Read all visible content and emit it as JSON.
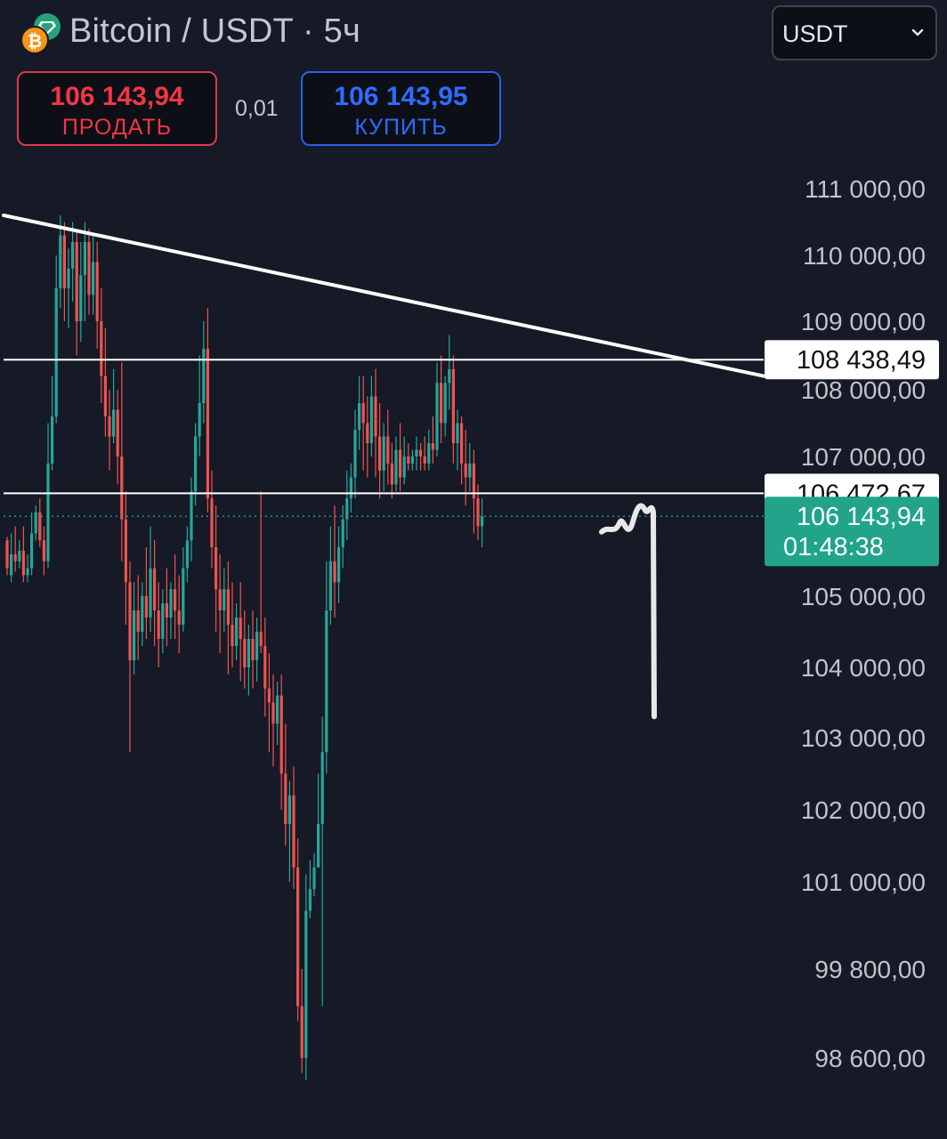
{
  "header": {
    "title": "Bitcoin / USDT · 5ч",
    "currency_select": "USDT",
    "icons": [
      "bitcoin-icon",
      "tether-diamond-icon",
      "chevron-down-icon"
    ]
  },
  "trade": {
    "sell_price": "106 143,94",
    "sell_label": "ПРОДАТЬ",
    "spread": "0,01",
    "buy_price": "106 143,95",
    "buy_label": "КУПИТЬ"
  },
  "colors": {
    "background": "#151a26",
    "up": "#26a69a",
    "down": "#ef5350",
    "sell": "#f23645",
    "buy": "#2f6bff",
    "current_price_tag": "#21a48a"
  },
  "chart_data": {
    "type": "candlestick",
    "y_axis_ticks": [
      111000,
      110000,
      109000,
      108000,
      107000,
      105000,
      104000,
      103000,
      102000,
      101000,
      99800,
      98600
    ],
    "y_axis_labels": [
      "111 000,00",
      "110 000,00",
      "109 000,00",
      "108 000,00",
      "107 000,00",
      "105 000,00",
      "104 000,00",
      "103 000,00",
      "102 000,00",
      "101 000,00",
      "99 800,00",
      "98 600,00"
    ],
    "horizontal_levels": [
      {
        "value": 108438.49,
        "label": "108 438,49"
      },
      {
        "value": 106472.67,
        "label": "106 472,67"
      }
    ],
    "current_price": {
      "value": 106143.94,
      "label": "106 143,94",
      "countdown": "01:48:38"
    },
    "trendline": {
      "from_price": 110600,
      "to_price": 108200
    },
    "drawing": {
      "kind": "hand-drawn projection",
      "from_price": 106200,
      "to_price": 103300
    },
    "candles": [
      [
        105800,
        105850,
        105400,
        105300
      ],
      [
        105300,
        105900,
        105600,
        105200
      ],
      [
        105600,
        106000,
        105500,
        105350
      ],
      [
        105500,
        105800,
        105650,
        105400
      ],
      [
        105650,
        106000,
        105300,
        105200
      ],
      [
        105300,
        105600,
        105400,
        105200
      ],
      [
        105400,
        106200,
        105900,
        105300
      ],
      [
        105900,
        106300,
        106200,
        105800
      ],
      [
        106200,
        106400,
        105800,
        105700
      ],
      [
        105800,
        106000,
        105500,
        105300
      ],
      [
        105500,
        107500,
        106900,
        105400
      ],
      [
        106900,
        108200,
        107600,
        106800
      ],
      [
        107600,
        110000,
        109500,
        107500
      ],
      [
        109500,
        110600,
        110300,
        109200
      ],
      [
        110300,
        110500,
        109500,
        109000
      ],
      [
        109500,
        110100,
        109800,
        108900
      ],
      [
        109800,
        110500,
        110200,
        109300
      ],
      [
        110200,
        110400,
        109000,
        108500
      ],
      [
        109000,
        110200,
        109700,
        108700
      ],
      [
        109700,
        110500,
        110200,
        109000
      ],
      [
        110200,
        110400,
        109400,
        109100
      ],
      [
        109400,
        110300,
        109900,
        109100
      ],
      [
        109900,
        110200,
        109000,
        108600
      ],
      [
        109000,
        109500,
        108200,
        107800
      ],
      [
        108200,
        108900,
        107600,
        107300
      ],
      [
        107600,
        108000,
        107300,
        106800
      ],
      [
        107300,
        108300,
        107700,
        107200
      ],
      [
        107700,
        108000,
        107000,
        106600
      ],
      [
        107000,
        108400,
        106100,
        105500
      ],
      [
        106100,
        106500,
        105200,
        104600
      ],
      [
        105200,
        105500,
        104100,
        102800
      ],
      [
        104100,
        105200,
        104800,
        103900
      ],
      [
        104800,
        105300,
        104500,
        104100
      ],
      [
        104500,
        105200,
        105000,
        104300
      ],
      [
        105000,
        105700,
        104700,
        104400
      ],
      [
        104700,
        106000,
        105400,
        104500
      ],
      [
        105400,
        105800,
        104800,
        104300
      ],
      [
        104800,
        105200,
        104400,
        104000
      ],
      [
        104400,
        105100,
        104900,
        104200
      ],
      [
        104900,
        105400,
        104700,
        104300
      ],
      [
        104700,
        105200,
        105100,
        104400
      ],
      [
        105100,
        105600,
        104800,
        104400
      ],
      [
        104800,
        105300,
        104600,
        104200
      ],
      [
        104600,
        105700,
        105400,
        104500
      ],
      [
        105400,
        106000,
        105800,
        105200
      ],
      [
        105800,
        106700,
        106500,
        105500
      ],
      [
        106500,
        107500,
        107300,
        106300
      ],
      [
        107300,
        108500,
        107800,
        107000
      ],
      [
        107800,
        109000,
        108600,
        107500
      ],
      [
        108600,
        109200,
        106400,
        106200
      ],
      [
        106400,
        106800,
        105700,
        105400
      ],
      [
        105700,
        106300,
        105100,
        104500
      ],
      [
        105100,
        105600,
        104800,
        104200
      ],
      [
        104800,
        105400,
        105100,
        104500
      ],
      [
        105100,
        105500,
        104600,
        103900
      ],
      [
        104600,
        105200,
        104300,
        104000
      ],
      [
        104300,
        104900,
        104700,
        104100
      ],
      [
        104700,
        105200,
        104400,
        103800
      ],
      [
        104400,
        104800,
        104000,
        103700
      ],
      [
        104000,
        104600,
        104400,
        103600
      ],
      [
        104400,
        104800,
        104100,
        103700
      ],
      [
        104100,
        104700,
        104500,
        103800
      ],
      [
        104500,
        106500,
        104300,
        104200
      ],
      [
        104300,
        104700,
        103700,
        103300
      ],
      [
        103700,
        104200,
        103500,
        102800
      ],
      [
        103500,
        103900,
        103200,
        102600
      ],
      [
        103200,
        103800,
        103600,
        102900
      ],
      [
        103600,
        103900,
        102500,
        102000
      ],
      [
        102500,
        103200,
        101800,
        101500
      ],
      [
        101800,
        102400,
        102200,
        101000
      ],
      [
        102200,
        102600,
        101200,
        100900
      ],
      [
        101200,
        101600,
        99300,
        99100
      ],
      [
        99300,
        99800,
        98600,
        98400
      ],
      [
        98600,
        101100,
        100600,
        98300
      ],
      [
        100600,
        101300,
        100900,
        100500
      ],
      [
        100900,
        101400,
        101200,
        100800
      ],
      [
        101200,
        102500,
        101800,
        101200
      ],
      [
        101800,
        103300,
        102800,
        99300
      ],
      [
        102800,
        105500,
        104800,
        102500
      ],
      [
        104800,
        106000,
        105500,
        104600
      ],
      [
        105500,
        106300,
        105200,
        104700
      ],
      [
        105200,
        106000,
        105700,
        104900
      ],
      [
        105700,
        106300,
        106100,
        105400
      ],
      [
        106100,
        106800,
        106400,
        105800
      ],
      [
        106400,
        106900,
        106700,
        106200
      ],
      [
        106700,
        107700,
        107400,
        106400
      ],
      [
        107400,
        108200,
        107800,
        107100
      ],
      [
        107800,
        108200,
        107500,
        106800
      ],
      [
        107500,
        107900,
        107200,
        106700
      ],
      [
        107200,
        108200,
        107900,
        107000
      ],
      [
        107900,
        108300,
        107300,
        106700
      ],
      [
        107300,
        107800,
        106800,
        106400
      ],
      [
        106800,
        107500,
        107300,
        106500
      ],
      [
        107300,
        107700,
        106900,
        106600
      ],
      [
        106900,
        107200,
        106600,
        106400
      ],
      [
        106600,
        107300,
        107100,
        106500
      ],
      [
        107100,
        107500,
        106700,
        106500
      ],
      [
        106700,
        107300,
        107000,
        106600
      ],
      [
        107000,
        107200,
        106900,
        106800
      ],
      [
        106900,
        107100,
        107000,
        106800
      ],
      [
        107000,
        107300,
        107100,
        106800
      ],
      [
        107100,
        107200,
        107000,
        106800
      ],
      [
        107000,
        107300,
        106900,
        106800
      ],
      [
        106900,
        107400,
        107200,
        106800
      ],
      [
        107200,
        107600,
        107100,
        106900
      ],
      [
        107100,
        108400,
        108100,
        107000
      ],
      [
        108100,
        108500,
        107500,
        107200
      ],
      [
        107500,
        108200,
        108100,
        107300
      ],
      [
        108100,
        108800,
        108300,
        107700
      ],
      [
        108300,
        108500,
        107200,
        106900
      ],
      [
        107200,
        107700,
        107500,
        106800
      ],
      [
        107500,
        107600,
        106900,
        106600
      ],
      [
        106900,
        107400,
        106700,
        106300
      ],
      [
        106700,
        107200,
        106900,
        106500
      ],
      [
        106900,
        107100,
        106400,
        105900
      ],
      [
        106400,
        106600,
        106000,
        105800
      ],
      [
        106000,
        106400,
        106140,
        105700
      ]
    ]
  }
}
